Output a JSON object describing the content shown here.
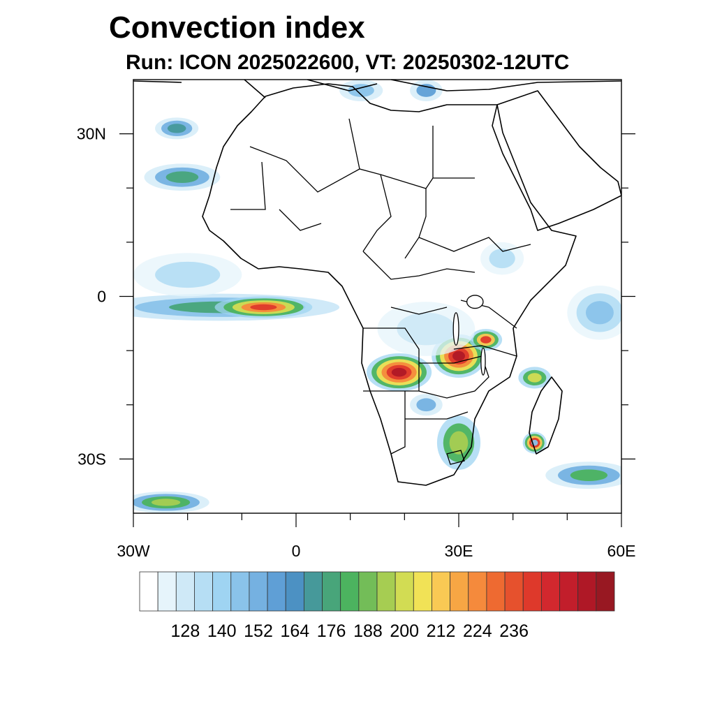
{
  "title": "Convection index",
  "subtitle": "Run: ICON 2025022600,  VT: 20250302-12UTC",
  "axes": {
    "lon_labels": [
      {
        "value": -30,
        "text": "30W"
      },
      {
        "value": 0,
        "text": "0"
      },
      {
        "value": 30,
        "text": "30E"
      },
      {
        "value": 60,
        "text": "60E"
      }
    ],
    "lat_labels": [
      {
        "value": 30,
        "text": "30N"
      },
      {
        "value": 0,
        "text": "0"
      },
      {
        "value": -30,
        "text": "30S"
      }
    ],
    "lon_range": [
      -30,
      60
    ],
    "lat_range": [
      -40,
      40
    ]
  },
  "colorbar": {
    "colors": [
      "#ffffff",
      "#e6f4fb",
      "#cfe9f7",
      "#b6def4",
      "#9fd4f2",
      "#8ac3ea",
      "#75b1e1",
      "#5f9fd6",
      "#4c91c3",
      "#46999a",
      "#48a57a",
      "#4cb35f",
      "#73bd58",
      "#a6cd52",
      "#d2dc53",
      "#f1e256",
      "#f9c954",
      "#f7a644",
      "#f58a3c",
      "#ee6a31",
      "#e6512d",
      "#de392b",
      "#d2282e",
      "#c21e2b",
      "#af1826",
      "#981822"
    ],
    "labels": [
      "128",
      "140",
      "152",
      "164",
      "176",
      "188",
      "200",
      "212",
      "224",
      "236"
    ]
  },
  "features": {
    "cells": [
      {
        "name": "gulf-of-guinea-band",
        "lon": -14,
        "lat": -2,
        "rx": 22,
        "ry": 2.5,
        "levels": [
          "#bfe1f5",
          "#8ac3ea",
          "#48a57a"
        ]
      },
      {
        "name": "equatorial-atlantic-cell",
        "lon": -6,
        "lat": -2,
        "rx": 9,
        "ry": 2,
        "levels": [
          "#9fd4f2",
          "#4cb35f",
          "#d2dc53",
          "#f58a3c",
          "#de392b"
        ]
      },
      {
        "name": "west-africa-plume",
        "lon": -21,
        "lat": 22,
        "rx": 7,
        "ry": 2.5,
        "levels": [
          "#cfe9f7",
          "#75b1e1",
          "#48a57a"
        ]
      },
      {
        "name": "canary-plume",
        "lon": -22,
        "lat": 31,
        "rx": 4,
        "ry": 2,
        "levels": [
          "#cfe9f7",
          "#75b1e1",
          "#46999a"
        ]
      },
      {
        "name": "angola-zambia-cell",
        "lon": 19,
        "lat": -14,
        "rx": 6,
        "ry": 3.5,
        "levels": [
          "#9fd4f2",
          "#4cb35f",
          "#f1e256",
          "#f58a3c",
          "#de392b",
          "#af1826"
        ]
      },
      {
        "name": "zambia-east-cell",
        "lon": 30,
        "lat": -11,
        "rx": 5,
        "ry": 4,
        "levels": [
          "#9fd4f2",
          "#4cb35f",
          "#f1e256",
          "#f58a3c",
          "#de392b",
          "#af1826"
        ]
      },
      {
        "name": "tanzania-cell",
        "lon": 35,
        "lat": -8,
        "rx": 3,
        "ry": 2,
        "levels": [
          "#9fd4f2",
          "#4cb35f",
          "#f9c954",
          "#de392b"
        ]
      },
      {
        "name": "mozambique-channel-cell",
        "lon": 44,
        "lat": -15,
        "rx": 3,
        "ry": 2,
        "levels": [
          "#9fd4f2",
          "#4cb35f",
          "#d2dc53"
        ]
      },
      {
        "name": "madagascar-south-cell",
        "lon": 44,
        "lat": -27,
        "rx": 2.2,
        "ry": 2,
        "levels": [
          "#9fd4f2",
          "#4cb35f",
          "#f9c954",
          "#de392b",
          "#8ac3ea"
        ]
      },
      {
        "name": "south-africa-cell",
        "lon": 30,
        "lat": -27,
        "rx": 4,
        "ry": 5,
        "levels": [
          "#9fd4f2",
          "#4cb35f",
          "#a6cd52"
        ]
      },
      {
        "name": "botswana-cell",
        "lon": 24,
        "lat": -20,
        "rx": 3,
        "ry": 2,
        "levels": [
          "#cfe9f7",
          "#75b1e1"
        ]
      },
      {
        "name": "indian-ocean-band",
        "lon": 54,
        "lat": -33,
        "rx": 8,
        "ry": 2.5,
        "levels": [
          "#cfe9f7",
          "#75b1e1",
          "#4cb35f"
        ]
      },
      {
        "name": "southwest-atlantic-band",
        "lon": -24,
        "lat": -38,
        "rx": 8,
        "ry": 2,
        "levels": [
          "#cfe9f7",
          "#75b1e1",
          "#4cb35f",
          "#a6cd52"
        ]
      },
      {
        "name": "east-indian-ocean-band",
        "lon": 56,
        "lat": -3,
        "rx": 6,
        "ry": 5,
        "levels": [
          "#e6f4fb",
          "#b6def4",
          "#8ac3ea"
        ]
      },
      {
        "name": "mediterranean-cell",
        "lon": 12,
        "lat": 38,
        "rx": 4,
        "ry": 2,
        "levels": [
          "#cfe9f7",
          "#8ac3ea"
        ]
      },
      {
        "name": "aegean-cell",
        "lon": 24,
        "lat": 38,
        "rx": 3,
        "ry": 2,
        "levels": [
          "#cfe9f7",
          "#5f9fd6"
        ]
      },
      {
        "name": "congo-basin-haze",
        "lon": 24,
        "lat": -6,
        "rx": 9,
        "ry": 5,
        "levels": [
          "#e6f4fb",
          "#cfe9f7"
        ]
      },
      {
        "name": "ethiopia-haze",
        "lon": 38,
        "lat": 7,
        "rx": 4,
        "ry": 3,
        "levels": [
          "#e6f4fb",
          "#b6def4"
        ]
      },
      {
        "name": "atlantic-haze",
        "lon": -20,
        "lat": 4,
        "rx": 10,
        "ry": 4,
        "levels": [
          "#e6f4fb",
          "#b6def4"
        ]
      }
    ],
    "lakes": [
      {
        "name": "lake-victoria",
        "lon": 33,
        "lat": -1,
        "rx": 1.5,
        "ry": 1.2
      },
      {
        "name": "lake-tanganyika",
        "lon": 29.5,
        "lat": -6,
        "rx": 0.5,
        "ry": 3
      },
      {
        "name": "lake-malawi",
        "lon": 34.5,
        "lat": -12,
        "rx": 0.4,
        "ry": 2.5
      }
    ]
  }
}
